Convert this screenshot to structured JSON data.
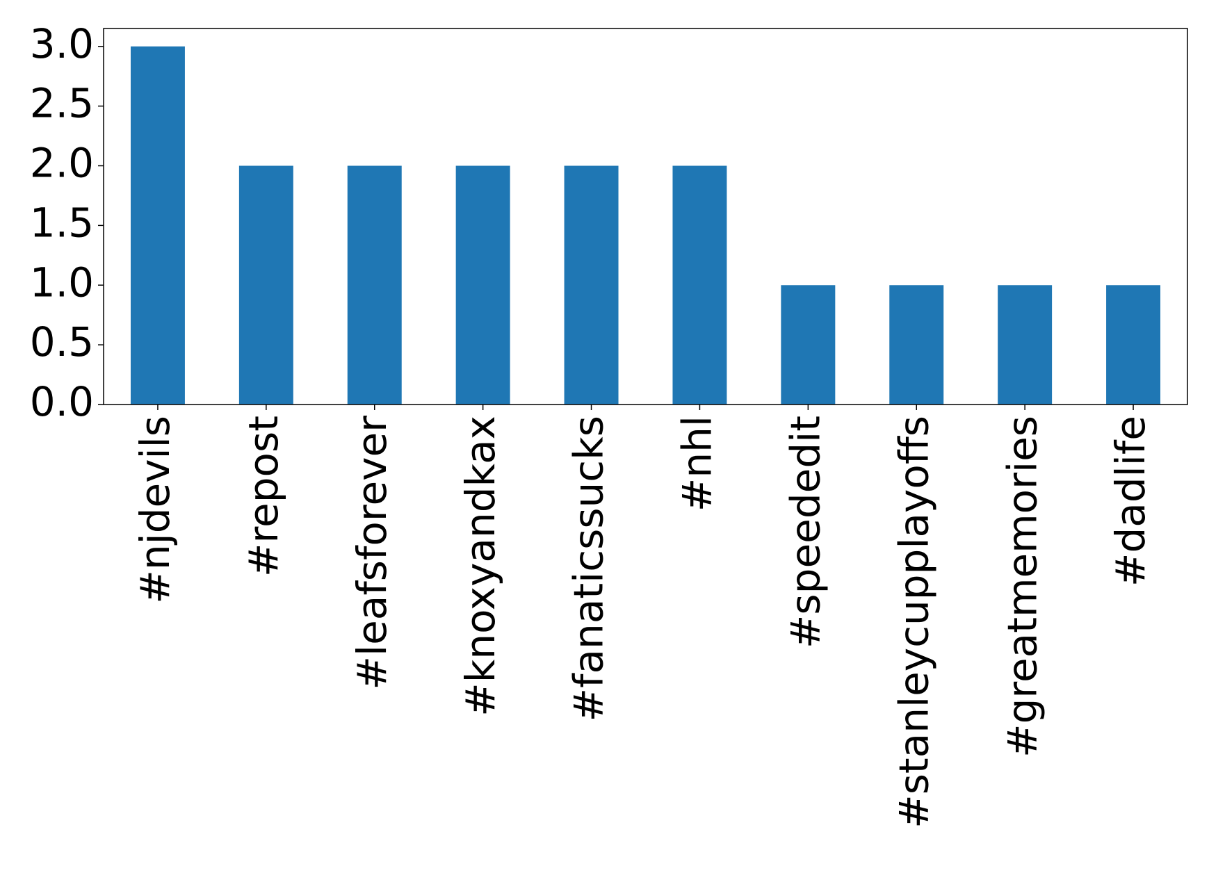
{
  "chart_data": {
    "type": "bar",
    "categories": [
      "#njdevils",
      "#repost",
      "#leafsforever",
      "#knoxyandkax",
      "#fanaticssucks",
      "#nhl",
      "#speededit",
      "#stanleycupplayoffs",
      "#greatmemories",
      "#dadlife"
    ],
    "values": [
      3,
      2,
      2,
      2,
      2,
      2,
      1,
      1,
      1,
      1
    ],
    "color": "#1f77b4",
    "ylim": [
      0,
      3.15
    ],
    "yticks": [
      {
        "value": 0,
        "label": "0.0"
      },
      {
        "value": 0.5,
        "label": "0.5"
      },
      {
        "value": 1,
        "label": "1.0"
      },
      {
        "value": 1.5,
        "label": "1.5"
      },
      {
        "value": 2,
        "label": "2.0"
      },
      {
        "value": 2.5,
        "label": "2.5"
      },
      {
        "value": 3,
        "label": "3.0"
      }
    ],
    "grid": false
  }
}
